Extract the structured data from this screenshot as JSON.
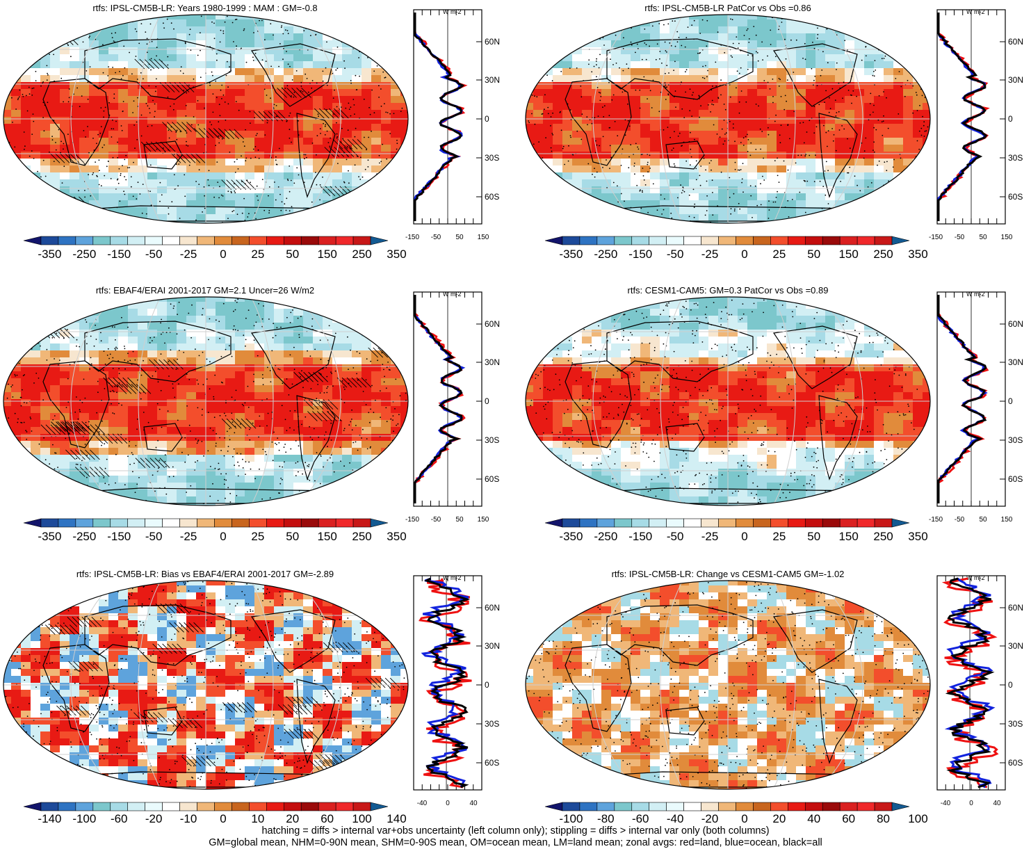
{
  "colors": {
    "palette": [
      "#12146b",
      "#1d4a9a",
      "#2e73c2",
      "#5ea3dc",
      "#7cc7cc",
      "#a7dbe6",
      "#d2eff4",
      "#eafbfd",
      "#ffffff",
      "#f7e6cf",
      "#f0b778",
      "#e18b3b",
      "#c8651e",
      "#f34e2c",
      "#e81a14",
      "#c40e0e",
      "#9a0a0a",
      "#da2020",
      "#f0282a",
      "#c81818",
      "#135a92"
    ],
    "land_line": "#000000",
    "red_line": "#ee1111",
    "blue_line": "#1122dd",
    "black_line": "#000000"
  },
  "panels": [
    {
      "id": "p1",
      "title": "rtfs: IPSL-CM5B-LR: Years 1980-1999 : MAM : GM=-0.8",
      "pattern": "model",
      "hatch": true
    },
    {
      "id": "p2",
      "title": "rtfs: IPSL-CM5B-LR PatCor vs Obs =0.86",
      "pattern": "model",
      "hatch": false
    },
    {
      "id": "p3",
      "title": "rtfs: EBAF4/ERAI 2001-2017 GM=2.1 Uncer=26 W/m2",
      "pattern": "obs",
      "hatch": true
    },
    {
      "id": "p4",
      "title": "rtfs: CESM1-CAM5: GM=0.3 PatCor vs Obs =0.89",
      "pattern": "model2",
      "hatch": false
    },
    {
      "id": "p5",
      "title": "rtfs: IPSL-CM5B-LR: Bias vs EBAF4/ERAI 2001-2017 GM=-2.89",
      "pattern": "bias",
      "hatch": true
    },
    {
      "id": "p6",
      "title": "rtfs: IPSL-CM5B-LR: Change vs CESM1-CAM5 GM=-1.02",
      "pattern": "change",
      "hatch": false
    }
  ],
  "colorbars": {
    "abs": [
      "-350",
      "-250",
      "-150",
      "-50",
      "-25",
      "0",
      "25",
      "50",
      "150",
      "250",
      "350"
    ],
    "bias": [
      "-140",
      "-100",
      "-60",
      "-20",
      "-10",
      "0",
      "10",
      "20",
      "60",
      "100",
      "140"
    ],
    "change": [
      "-100",
      "-80",
      "-60",
      "-40",
      "-20",
      "0",
      "20",
      "40",
      "60",
      "80",
      "100"
    ]
  },
  "profile": {
    "unit": "W m-2",
    "lat_ticks": [
      "60N",
      "30N",
      "0",
      "30S",
      "60S"
    ],
    "x_ticks_abs": [
      "-150",
      "-50",
      "50",
      "150"
    ],
    "x_ticks_diff": [
      "-40",
      "0",
      "40"
    ]
  },
  "chart_data": [
    {
      "type": "heatmap",
      "title": "rtfs: IPSL-CM5B-LR: Years 1980-1999 : MAM : GM=-0.8",
      "colorbar_ticks": [
        -350,
        -250,
        -150,
        -50,
        -25,
        0,
        25,
        50,
        150,
        250,
        350
      ],
      "zonal_profile_xlim": [
        -150,
        150
      ]
    },
    {
      "type": "heatmap",
      "title": "rtfs: IPSL-CM5B-LR PatCor vs Obs =0.86",
      "colorbar_ticks": [
        -350,
        -250,
        -150,
        -50,
        -25,
        0,
        25,
        50,
        150,
        250,
        350
      ],
      "zonal_profile_xlim": [
        -150,
        150
      ]
    },
    {
      "type": "heatmap",
      "title": "rtfs: EBAF4/ERAI 2001-2017 GM=2.1 Uncer=26 W/m2",
      "colorbar_ticks": [
        -350,
        -250,
        -150,
        -50,
        -25,
        0,
        25,
        50,
        150,
        250,
        350
      ],
      "zonal_profile_xlim": [
        -150,
        150
      ]
    },
    {
      "type": "heatmap",
      "title": "rtfs: CESM1-CAM5: GM=0.3 PatCor vs Obs =0.89",
      "colorbar_ticks": [
        -350,
        -250,
        -150,
        -50,
        -25,
        0,
        25,
        50,
        150,
        250,
        350
      ],
      "zonal_profile_xlim": [
        -150,
        150
      ]
    },
    {
      "type": "heatmap",
      "title": "rtfs: IPSL-CM5B-LR: Bias vs EBAF4/ERAI 2001-2017 GM=-2.89",
      "colorbar_ticks": [
        -140,
        -100,
        -60,
        -20,
        -10,
        0,
        10,
        20,
        60,
        100,
        140
      ],
      "zonal_profile_xlim": [
        -60,
        60
      ]
    },
    {
      "type": "heatmap",
      "title": "rtfs: IPSL-CM5B-LR: Change vs CESM1-CAM5 GM=-1.02",
      "colorbar_ticks": [
        -100,
        -80,
        -60,
        -40,
        -20,
        0,
        20,
        40,
        60,
        80,
        100
      ],
      "zonal_profile_xlim": [
        -60,
        60
      ]
    }
  ],
  "footer": {
    "line1": "hatching = diffs > internal var+obs uncertainty (left column only); stippling = diffs > internal var only (both columns)",
    "line2": "GM=global mean, NHM=0-90N mean, SHM=0-90S mean, OM=ocean mean, LM=land mean; zonal avgs: red=land, blue=ocean, black=all"
  }
}
